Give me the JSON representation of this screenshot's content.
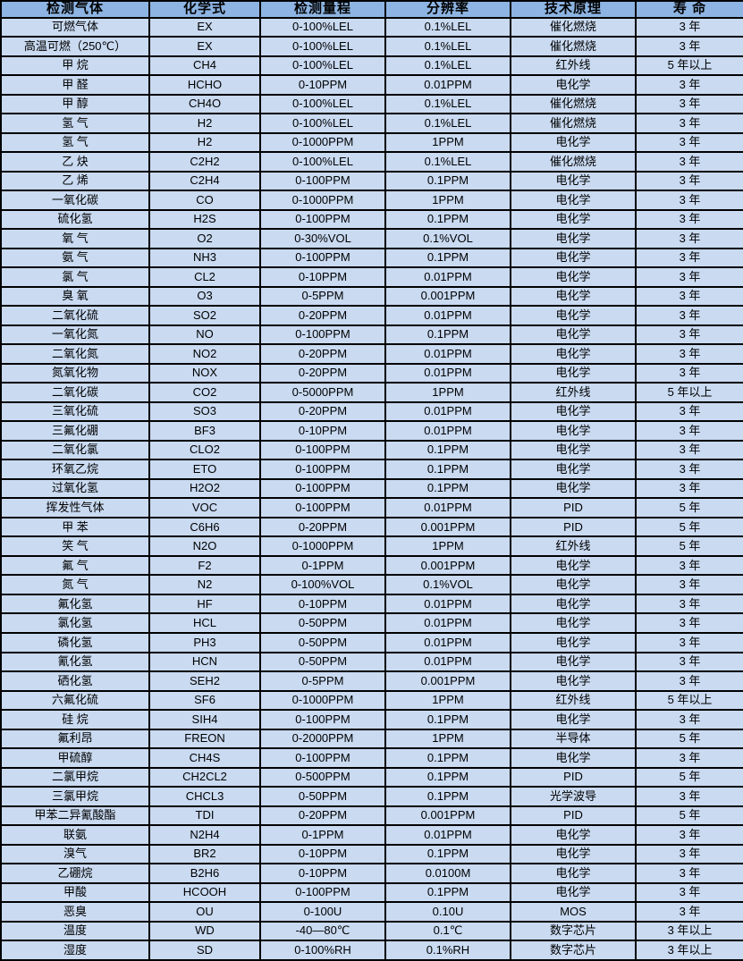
{
  "colors": {
    "header_bg": "#8db4e2",
    "row_bg": "#c9daf1",
    "border": "#000000",
    "text": "#000000"
  },
  "table": {
    "columns": [
      "检测气体",
      "化学式",
      "检测量程",
      "分辨率",
      "技术原理",
      "寿 命"
    ],
    "rows": [
      [
        "可燃气体",
        "EX",
        "0-100%LEL",
        "0.1%LEL",
        "催化燃烧",
        "3 年"
      ],
      [
        "高温可燃（250℃）",
        "EX",
        "0-100%LEL",
        "0.1%LEL",
        "催化燃烧",
        "3 年"
      ],
      [
        "甲 烷",
        "CH4",
        "0-100%LEL",
        "0.1%LEL",
        "红外线",
        "5 年以上"
      ],
      [
        "甲 醛",
        "HCHO",
        "0-10PPM",
        "0.01PPM",
        "电化学",
        "3 年"
      ],
      [
        "甲 醇",
        "CH4O",
        "0-100%LEL",
        "0.1%LEL",
        "催化燃烧",
        "3 年"
      ],
      [
        "氢 气",
        "H2",
        "0-100%LEL",
        "0.1%LEL",
        "催化燃烧",
        "3 年"
      ],
      [
        "氢 气",
        "H2",
        "0-1000PPM",
        "1PPM",
        "电化学",
        "3 年"
      ],
      [
        "乙 炔",
        "C2H2",
        "0-100%LEL",
        "0.1%LEL",
        "催化燃烧",
        "3 年"
      ],
      [
        "乙 烯",
        "C2H4",
        "0-100PPM",
        "0.1PPM",
        "电化学",
        "3 年"
      ],
      [
        "一氧化碳",
        "CO",
        "0-1000PPM",
        "1PPM",
        "电化学",
        "3 年"
      ],
      [
        "硫化氢",
        "H2S",
        "0-100PPM",
        "0.1PPM",
        "电化学",
        "3 年"
      ],
      [
        "氧 气",
        "O2",
        "0-30%VOL",
        "0.1%VOL",
        "电化学",
        "3 年"
      ],
      [
        "氨 气",
        "NH3",
        "0-100PPM",
        "0.1PPM",
        "电化学",
        "3 年"
      ],
      [
        "氯 气",
        "CL2",
        "0-10PPM",
        "0.01PPM",
        "电化学",
        "3 年"
      ],
      [
        "臭 氧",
        "O3",
        "0-5PPM",
        "0.001PPM",
        "电化学",
        "3 年"
      ],
      [
        "二氧化硫",
        "SO2",
        "0-20PPM",
        "0.01PPM",
        "电化学",
        "3 年"
      ],
      [
        "一氧化氮",
        "NO",
        "0-100PPM",
        "0.1PPM",
        "电化学",
        "3 年"
      ],
      [
        "二氧化氮",
        "NO2",
        "0-20PPM",
        "0.01PPM",
        "电化学",
        "3 年"
      ],
      [
        "氮氧化物",
        "NOX",
        "0-20PPM",
        "0.01PPM",
        "电化学",
        "3 年"
      ],
      [
        "二氧化碳",
        "CO2",
        "0-5000PPM",
        "1PPM",
        "红外线",
        "5 年以上"
      ],
      [
        "三氧化硫",
        "SO3",
        "0-20PPM",
        "0.01PPM",
        "电化学",
        "3 年"
      ],
      [
        "三氟化硼",
        "BF3",
        "0-10PPM",
        "0.01PPM",
        "电化学",
        "3 年"
      ],
      [
        "二氧化氯",
        "CLO2",
        "0-100PPM",
        "0.1PPM",
        "电化学",
        "3 年"
      ],
      [
        "环氧乙烷",
        "ETO",
        "0-100PPM",
        "0.1PPM",
        "电化学",
        "3 年"
      ],
      [
        "过氧化氢",
        "H2O2",
        "0-100PPM",
        "0.1PPM",
        "电化学",
        "3 年"
      ],
      [
        "挥发性气体",
        "VOC",
        "0-100PPM",
        "0.01PPM",
        "PID",
        "5 年"
      ],
      [
        "甲 苯",
        "C6H6",
        "0-20PPM",
        "0.001PPM",
        "PID",
        "5 年"
      ],
      [
        "笑 气",
        "N2O",
        "0-1000PPM",
        "1PPM",
        "红外线",
        "5 年"
      ],
      [
        "氟 气",
        "F2",
        "0-1PPM",
        "0.001PPM",
        "电化学",
        "3 年"
      ],
      [
        "氮 气",
        "N2",
        "0-100%VOL",
        "0.1%VOL",
        "电化学",
        "3 年"
      ],
      [
        "氟化氢",
        "HF",
        "0-10PPM",
        "0.01PPM",
        "电化学",
        "3 年"
      ],
      [
        "氯化氢",
        "HCL",
        "0-50PPM",
        "0.01PPM",
        "电化学",
        "3 年"
      ],
      [
        "磷化氢",
        "PH3",
        "0-50PPM",
        "0.01PPM",
        "电化学",
        "3 年"
      ],
      [
        "氰化氢",
        "HCN",
        "0-50PPM",
        "0.01PPM",
        "电化学",
        "3 年"
      ],
      [
        "硒化氢",
        "SEH2",
        "0-5PPM",
        "0.001PPM",
        "电化学",
        "3 年"
      ],
      [
        "六氟化硫",
        "SF6",
        "0-1000PPM",
        "1PPM",
        "红外线",
        "5 年以上"
      ],
      [
        "硅 烷",
        "SIH4",
        "0-100PPM",
        "0.1PPM",
        "电化学",
        "3 年"
      ],
      [
        "氟利昂",
        "FREON",
        "0-2000PPM",
        "1PPM",
        "半导体",
        "5 年"
      ],
      [
        "甲硫醇",
        "CH4S",
        "0-100PPM",
        "0.1PPM",
        "电化学",
        "3 年"
      ],
      [
        "二氯甲烷",
        "CH2CL2",
        "0-500PPM",
        "0.1PPM",
        "PID",
        "5 年"
      ],
      [
        "三氯甲烷",
        "CHCL3",
        "0-50PPM",
        "0.1PPM",
        "光学波导",
        "3 年"
      ],
      [
        "甲苯二异氰酸酯",
        "TDI",
        "0-20PPM",
        "0.001PPM",
        "PID",
        "5 年"
      ],
      [
        "联氨",
        "N2H4",
        "0-1PPM",
        "0.01PPM",
        "电化学",
        "3 年"
      ],
      [
        "溴气",
        "BR2",
        "0-10PPM",
        "0.1PPM",
        "电化学",
        "3 年"
      ],
      [
        "乙硼烷",
        "B2H6",
        "0-10PPM",
        "0.0100M",
        "电化学",
        "3 年"
      ],
      [
        "甲酸",
        "HCOOH",
        "0-100PPM",
        "0.1PPM",
        "电化学",
        "3 年"
      ],
      [
        "恶臭",
        "OU",
        "0-100U",
        "0.10U",
        "MOS",
        "3 年"
      ],
      [
        "温度",
        "WD",
        "-40—80℃",
        "0.1℃",
        "数字芯片",
        "3 年以上"
      ],
      [
        "湿度",
        "SD",
        "0-100%RH",
        "0.1%RH",
        "数字芯片",
        "3 年以上"
      ]
    ]
  }
}
